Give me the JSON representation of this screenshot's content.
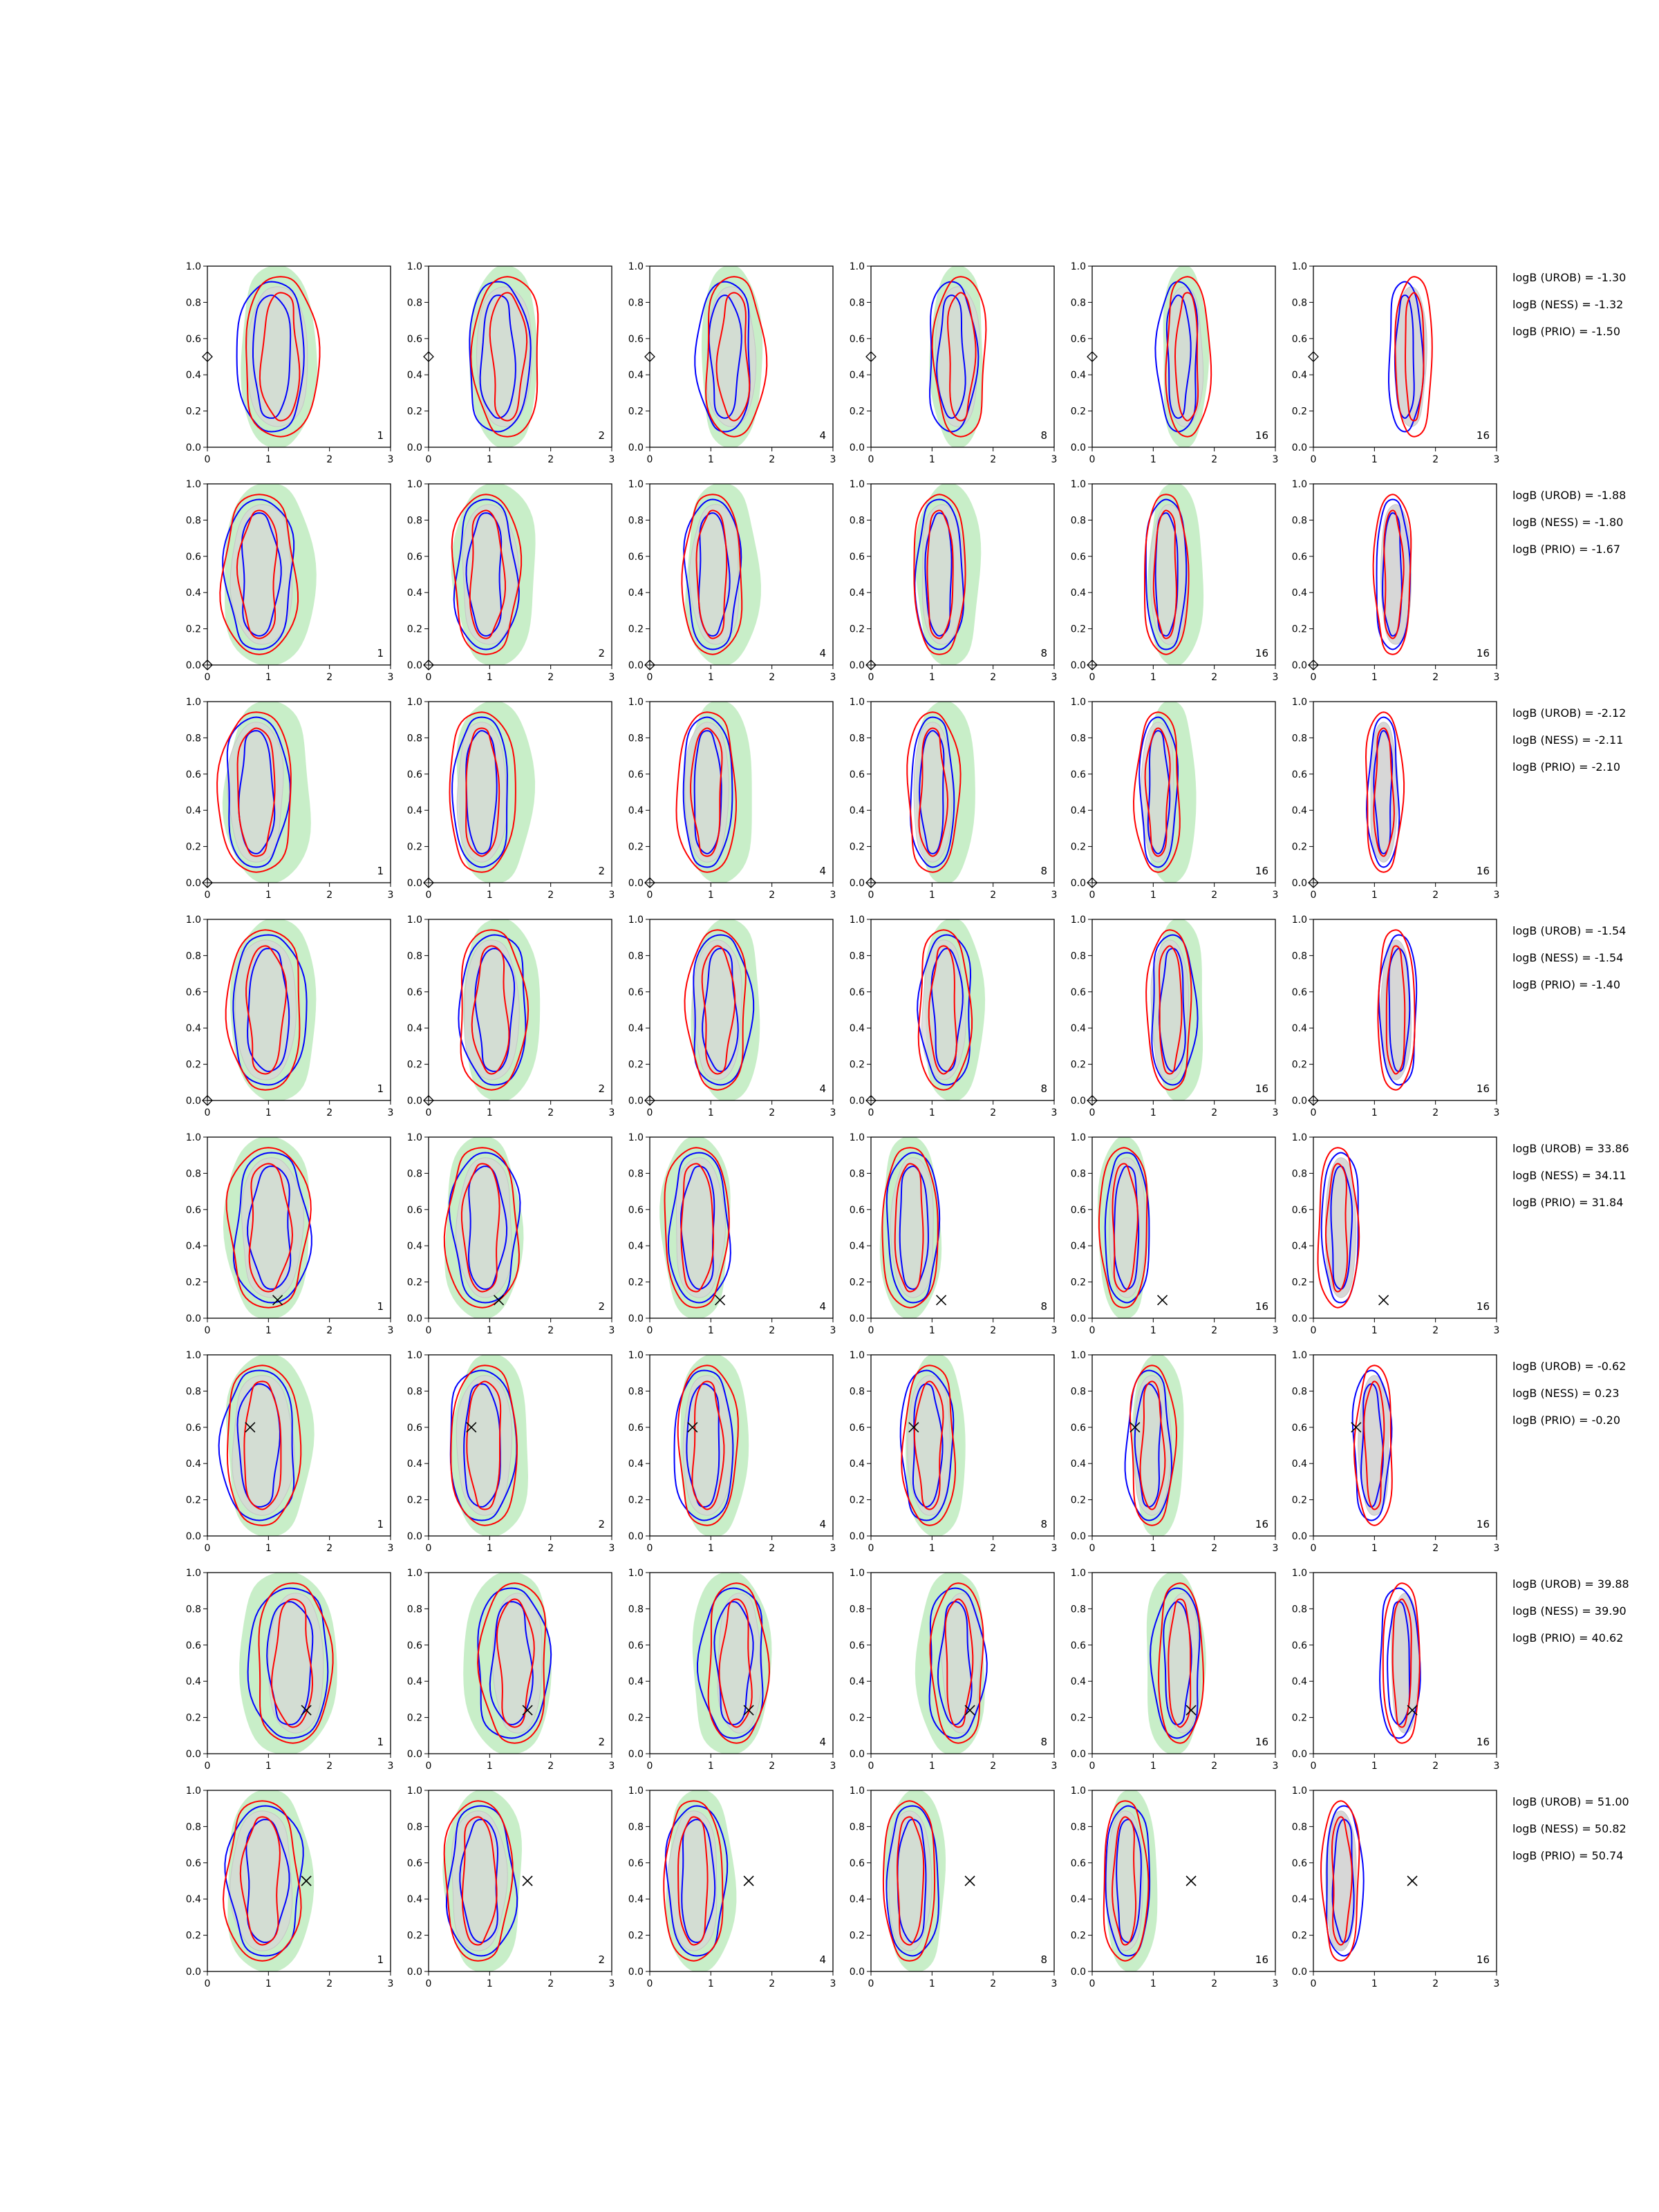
{
  "chart_data": {
    "type": "contour",
    "title": "",
    "xlabel": "",
    "ylabel": "",
    "xlim": [
      0,
      3
    ],
    "ylim": [
      0,
      1
    ],
    "x_ticks": [
      "0",
      "1",
      "2",
      "3"
    ],
    "y_ticks": [
      "0.0",
      "0.2",
      "0.4",
      "0.6",
      "0.8",
      "1.0"
    ],
    "grid": false,
    "colors": {
      "green_fill": "#c8eec8",
      "grey_fill": "#d7d7d7",
      "blue": "#0000ff",
      "red": "#ff0000",
      "marker": "#000000"
    },
    "column_labels": [
      "1",
      "2",
      "4",
      "8",
      "16",
      "16"
    ],
    "rows": [
      {
        "truth": {
          "x": 0.0,
          "y": 0.5,
          "marker": "diamond"
        },
        "green": [
          1.15,
          0.5,
          0.62,
          0.55
        ],
        "grey": [
          1.15,
          0.5,
          0.5,
          0.42
        ],
        "blue": [
          1.05,
          0.5,
          0.55,
          0.45
        ],
        "red": [
          1.2,
          0.5,
          0.6,
          0.48
        ],
        "shift": 0.45,
        "stats": [
          "logB (UROB) = -1.30",
          "logB (NESS) = -1.32",
          "logB (PRIO) = -1.50"
        ]
      },
      {
        "truth": {
          "x": 0.0,
          "y": 0.0,
          "marker": "diamond"
        },
        "green": [
          1.0,
          0.5,
          0.75,
          0.55
        ],
        "grey": [
          0.9,
          0.5,
          0.5,
          0.42
        ],
        "blue": [
          0.85,
          0.5,
          0.55,
          0.45
        ],
        "red": [
          0.85,
          0.5,
          0.6,
          0.48
        ],
        "shift": 0.45,
        "stats": [
          "logB (UROB) = -1.88",
          "logB (NESS) = -1.80",
          "logB (PRIO) = -1.67"
        ]
      },
      {
        "truth": {
          "x": 0.0,
          "y": 0.0,
          "marker": "diamond"
        },
        "green": [
          1.0,
          0.5,
          0.7,
          0.55
        ],
        "grey": [
          0.8,
          0.5,
          0.45,
          0.42
        ],
        "blue": [
          0.8,
          0.5,
          0.5,
          0.45
        ],
        "red": [
          0.8,
          0.5,
          0.6,
          0.48
        ],
        "shift": 0.35,
        "stats": [
          "logB (UROB) = -2.12",
          "logB (NESS) = -2.11",
          "logB (PRIO) = -2.10"
        ]
      },
      {
        "truth": {
          "x": 0.0,
          "y": 0.0,
          "marker": "diamond"
        },
        "green": [
          1.1,
          0.5,
          0.7,
          0.55
        ],
        "grey": [
          0.95,
          0.5,
          0.5,
          0.42
        ],
        "blue": [
          1.0,
          0.5,
          0.6,
          0.45
        ],
        "red": [
          0.95,
          0.5,
          0.6,
          0.48
        ],
        "shift": 0.4,
        "stats": [
          "logB (UROB) = -1.54",
          "logB (NESS) = -1.54",
          "logB (PRIO) = -1.40"
        ]
      },
      {
        "truth": {
          "x": 1.15,
          "y": 0.1,
          "marker": "x"
        },
        "green": [
          1.0,
          0.5,
          0.7,
          0.55
        ],
        "grey": [
          1.05,
          0.5,
          0.5,
          0.42
        ],
        "blue": [
          1.05,
          0.5,
          0.6,
          0.45
        ],
        "red": [
          1.0,
          0.5,
          0.65,
          0.48
        ],
        "shift": -0.6,
        "stats": [
          "logB (UROB) = 33.86",
          "logB (NESS) = 34.11",
          "logB (PRIO) = 31.84"
        ]
      },
      {
        "truth": {
          "x": 0.7,
          "y": 0.6,
          "marker": "x"
        },
        "green": [
          1.0,
          0.5,
          0.7,
          0.55
        ],
        "grey": [
          0.9,
          0.5,
          0.5,
          0.42
        ],
        "blue": [
          0.85,
          0.5,
          0.6,
          0.45
        ],
        "red": [
          0.9,
          0.5,
          0.6,
          0.48
        ],
        "shift": 0.1,
        "stats": [
          "logB (UROB) = -0.62",
          "logB (NESS) = 0.23",
          "logB (PRIO) = -0.20"
        ]
      },
      {
        "truth": {
          "x": 1.62,
          "y": 0.24,
          "marker": "x"
        },
        "green": [
          1.3,
          0.5,
          0.8,
          0.55
        ],
        "grey": [
          1.45,
          0.5,
          0.45,
          0.42
        ],
        "blue": [
          1.35,
          0.5,
          0.65,
          0.45
        ],
        "red": [
          1.4,
          0.5,
          0.6,
          0.48
        ],
        "shift": 0.05,
        "stats": [
          "logB (UROB) = 39.88",
          "logB (NESS) = 39.90",
          "logB (PRIO) = 40.62"
        ]
      },
      {
        "truth": {
          "x": 1.62,
          "y": 0.5,
          "marker": "x"
        },
        "green": [
          1.0,
          0.5,
          0.7,
          0.55
        ],
        "grey": [
          0.9,
          0.5,
          0.5,
          0.42
        ],
        "blue": [
          0.95,
          0.5,
          0.6,
          0.45
        ],
        "red": [
          0.9,
          0.5,
          0.6,
          0.48
        ],
        "shift": -0.45,
        "stats": [
          "logB (UROB) = 51.00",
          "logB (NESS) = 50.82",
          "logB (PRIO) = 50.74"
        ]
      }
    ]
  }
}
